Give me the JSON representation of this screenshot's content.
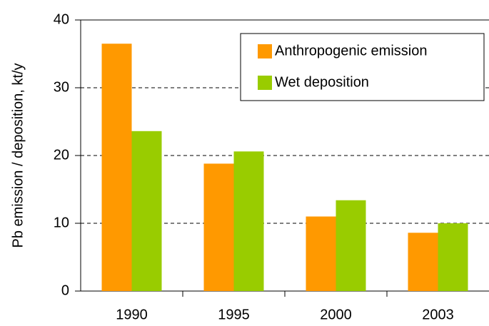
{
  "chart_data": {
    "type": "bar",
    "ylabel": "Pb emission / deposition, kt/y",
    "categories": [
      "1990",
      "1995",
      "2000",
      "2003"
    ],
    "series": [
      {
        "name": "Anthropogenic emission",
        "color": "#ff9900",
        "values": [
          36.5,
          18.8,
          11.0,
          8.6
        ]
      },
      {
        "name": "Wet deposition",
        "color": "#99cc00",
        "values": [
          23.6,
          20.6,
          13.4,
          10.0
        ]
      }
    ],
    "ylim": [
      0,
      40
    ],
    "yticks": [
      0,
      10,
      20,
      30,
      40
    ],
    "grid": true,
    "legend": "upper right"
  }
}
